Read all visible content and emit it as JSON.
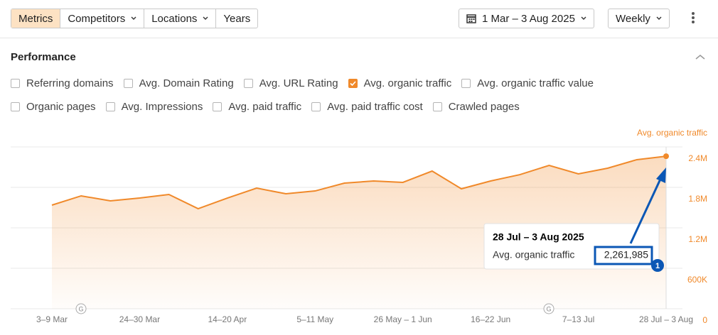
{
  "toolbar": {
    "tabs": [
      {
        "label": "Metrics",
        "active": true
      },
      {
        "label": "Competitors",
        "active": false,
        "dropdown": true
      },
      {
        "label": "Locations",
        "active": false,
        "dropdown": true
      },
      {
        "label": "Years",
        "active": false,
        "dropdown": false
      }
    ],
    "date_range": "1 Mar – 3 Aug 2025",
    "interval": "Weekly"
  },
  "section": {
    "title": "Performance",
    "metric_rows": [
      [
        {
          "label": "Referring domains",
          "checked": false
        },
        {
          "label": "Avg. Domain Rating",
          "checked": false
        },
        {
          "label": "Avg. URL Rating",
          "checked": false
        },
        {
          "label": "Avg. organic traffic",
          "checked": true
        },
        {
          "label": "Avg. organic traffic value",
          "checked": false
        }
      ],
      [
        {
          "label": "Organic pages",
          "checked": false
        },
        {
          "label": "Avg. Impressions",
          "checked": false
        },
        {
          "label": "Avg. paid traffic",
          "checked": false
        },
        {
          "label": "Avg. paid traffic cost",
          "checked": false
        },
        {
          "label": "Crawled pages",
          "checked": false
        }
      ]
    ]
  },
  "chart_data": {
    "type": "area",
    "categories": [
      "3–9 Mar",
      null,
      null,
      "24–30 Mar",
      null,
      null,
      "14–20 Apr",
      null,
      null,
      "5–11 May",
      null,
      null,
      "26 May – 1 Jun",
      null,
      null,
      "16–22 Jun",
      null,
      null,
      "7–13 Jul",
      null,
      null,
      "28 Jul – 3 Aug"
    ],
    "series": [
      {
        "name": "Avg. organic traffic",
        "color": "#f0892a",
        "values": [
          1537000,
          1674000,
          1600000,
          1642000,
          1695000,
          1484000,
          1642000,
          1789000,
          1705000,
          1747000,
          1863000,
          1895000,
          1874000,
          2042000,
          1779000,
          1895000,
          1989000,
          2126000,
          2000000,
          2084000,
          2211000,
          2261985
        ]
      }
    ],
    "ylim": [
      0,
      2400000
    ],
    "yticks": [
      0,
      {
        "value": 600000,
        "label": "600K"
      },
      {
        "value": 1200000,
        "label": "1.2M"
      },
      {
        "value": 1800000,
        "label": "1.8M"
      },
      {
        "value": 2400000,
        "label": "2.4M"
      }
    ],
    "grid": true,
    "markers": [
      {
        "label": "G"
      },
      {
        "label": "G"
      }
    ],
    "tooltip": {
      "title": "28 Jul – 3 Aug 2025",
      "value": "2,261,985",
      "badge": "1"
    }
  }
}
